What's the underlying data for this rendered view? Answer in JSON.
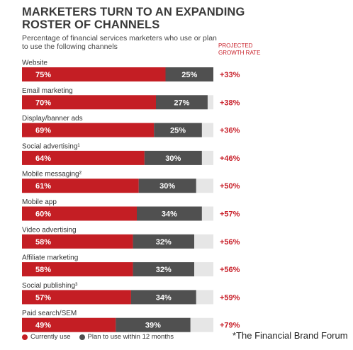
{
  "header": {
    "title": "MARKETERS TURN TO AN EXPANDING ROSTER OF CHANNELS",
    "subtitle": "Percentage of financial services marketers who use or plan to use the following channels",
    "growth_header": "PROJECTED GROWTH RATE"
  },
  "colors": {
    "current": "#c41e24",
    "plan": "#505050",
    "remainder": "#e6e6e6",
    "growth_text": "#c8202a"
  },
  "chart_data": {
    "type": "bar",
    "orientation": "horizontal",
    "stacked": true,
    "xlim": [
      0,
      100
    ],
    "categories": [
      "Website",
      "Email marketing",
      "Display/banner ads",
      "Social advertising¹",
      "Mobile messaging²",
      "Mobile app",
      "Video advertising",
      "Affiliate marketing",
      "Social publishing³",
      "Paid search/SEM"
    ],
    "series": [
      {
        "name": "Currently use",
        "values": [
          75,
          70,
          69,
          64,
          61,
          60,
          58,
          58,
          57,
          49
        ],
        "labels": [
          "75%",
          "70%",
          "69%",
          "64%",
          "61%",
          "60%",
          "58%",
          "58%",
          "57%",
          "49%"
        ]
      },
      {
        "name": "Plan to use within 12 months",
        "values": [
          25,
          27,
          25,
          30,
          30,
          34,
          32,
          32,
          34,
          39
        ],
        "labels": [
          "25%",
          "27%",
          "25%",
          "30%",
          "30%",
          "34%",
          "32%",
          "32%",
          "34%",
          "39%"
        ]
      }
    ],
    "growth_rates": [
      "+33%",
      "+38%",
      "+36%",
      "+46%",
      "+50%",
      "+57%",
      "+56%",
      "+56%",
      "+59%",
      "+79%"
    ],
    "legend_position": "bottom-left"
  },
  "footnote": "*The Financial Brand Forum"
}
